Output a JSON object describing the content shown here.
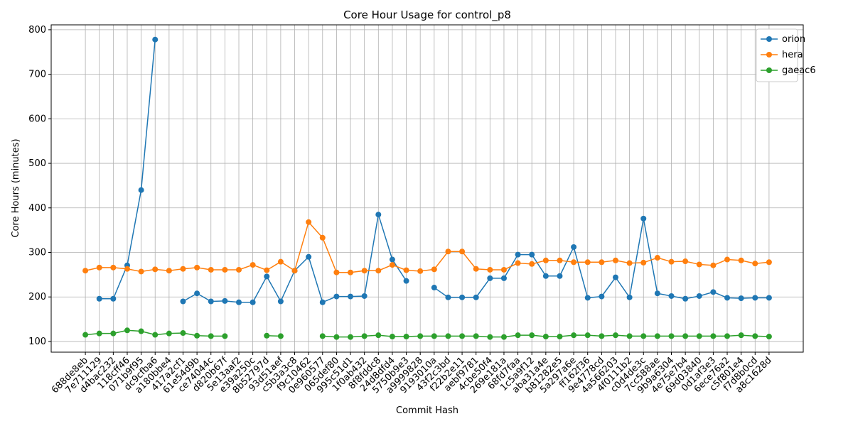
{
  "chart_data": {
    "type": "line",
    "title": "Core Hour Usage for control_p8",
    "x_label": "Commit Hash",
    "y_label": "Core Hours (minutes)",
    "categories": [
      "688de8eb",
      "7e711129",
      "d4bac232",
      "118cff46",
      "071b9f95",
      "dc9cfba6",
      "a180bbe4",
      "417a2cf1",
      "61e54d9b",
      "ce74044c",
      "d820b67f",
      "5e13aaf2",
      "e39a250c",
      "8b52797d",
      "93d51aef",
      "c5b3a3c8",
      "f9c10462",
      "0e960577",
      "065def80",
      "995c51d1",
      "1f0ab432",
      "8f8fddc8",
      "24d8dfd4",
      "5750b9e3",
      "a9999828",
      "9193010a",
      "43f2c3bd",
      "f22b2e11",
      "aebf9781",
      "4cbe50f4",
      "269e181a",
      "68fd7faa",
      "1c5a9f12",
      "aba31a4e",
      "b81282e5",
      "5a297a6e",
      "ff162f36",
      "9e4778cd",
      "4a566203",
      "4f0111b2",
      "c0d4de3c",
      "7cc588ae",
      "9b9a6304",
      "4e75e7b4",
      "69d03840",
      "0d1af3e3",
      "6ece76a2",
      "c5f801e4",
      "f7d8b0cd",
      "a8c1628d"
    ],
    "series": [
      {
        "name": "orion",
        "color": "#1f77b4",
        "values": [
          null,
          196,
          196,
          271,
          440,
          778,
          null,
          190,
          208,
          190,
          191,
          188,
          188,
          246,
          190,
          259,
          290,
          188,
          201,
          201,
          202,
          385,
          284,
          236,
          null,
          221,
          199,
          199,
          199,
          242,
          242,
          295,
          295,
          247,
          247,
          312,
          198,
          201,
          244,
          199,
          376,
          208,
          202,
          196,
          202,
          211,
          198,
          197,
          198,
          198
        ]
      },
      {
        "name": "hera",
        "color": "#ff7f0e",
        "values": [
          259,
          266,
          266,
          263,
          257,
          262,
          259,
          263,
          266,
          261,
          261,
          261,
          272,
          260,
          279,
          259,
          368,
          333,
          255,
          255,
          259,
          259,
          272,
          260,
          258,
          262,
          302,
          302,
          263,
          261,
          261,
          276,
          274,
          282,
          282,
          278,
          278,
          278,
          282,
          276,
          277,
          288,
          279,
          280,
          273,
          271,
          284,
          282,
          275,
          278
        ]
      },
      {
        "name": "gaeac6",
        "color": "#2ca02c",
        "values": [
          115,
          118,
          118,
          125,
          123,
          115,
          118,
          119,
          113,
          112,
          112,
          null,
          null,
          113,
          112,
          null,
          null,
          112,
          110,
          110,
          112,
          114,
          111,
          111,
          112,
          112,
          112,
          112,
          112,
          110,
          110,
          114,
          114,
          111,
          111,
          114,
          114,
          112,
          114,
          112,
          112,
          112,
          112,
          112,
          112,
          112,
          112,
          114,
          112,
          111
        ]
      }
    ],
    "ylim": [
      76,
      811
    ],
    "yticks": [
      100,
      200,
      300,
      400,
      500,
      600,
      700,
      800
    ],
    "grid": true,
    "legend": "upper right"
  }
}
